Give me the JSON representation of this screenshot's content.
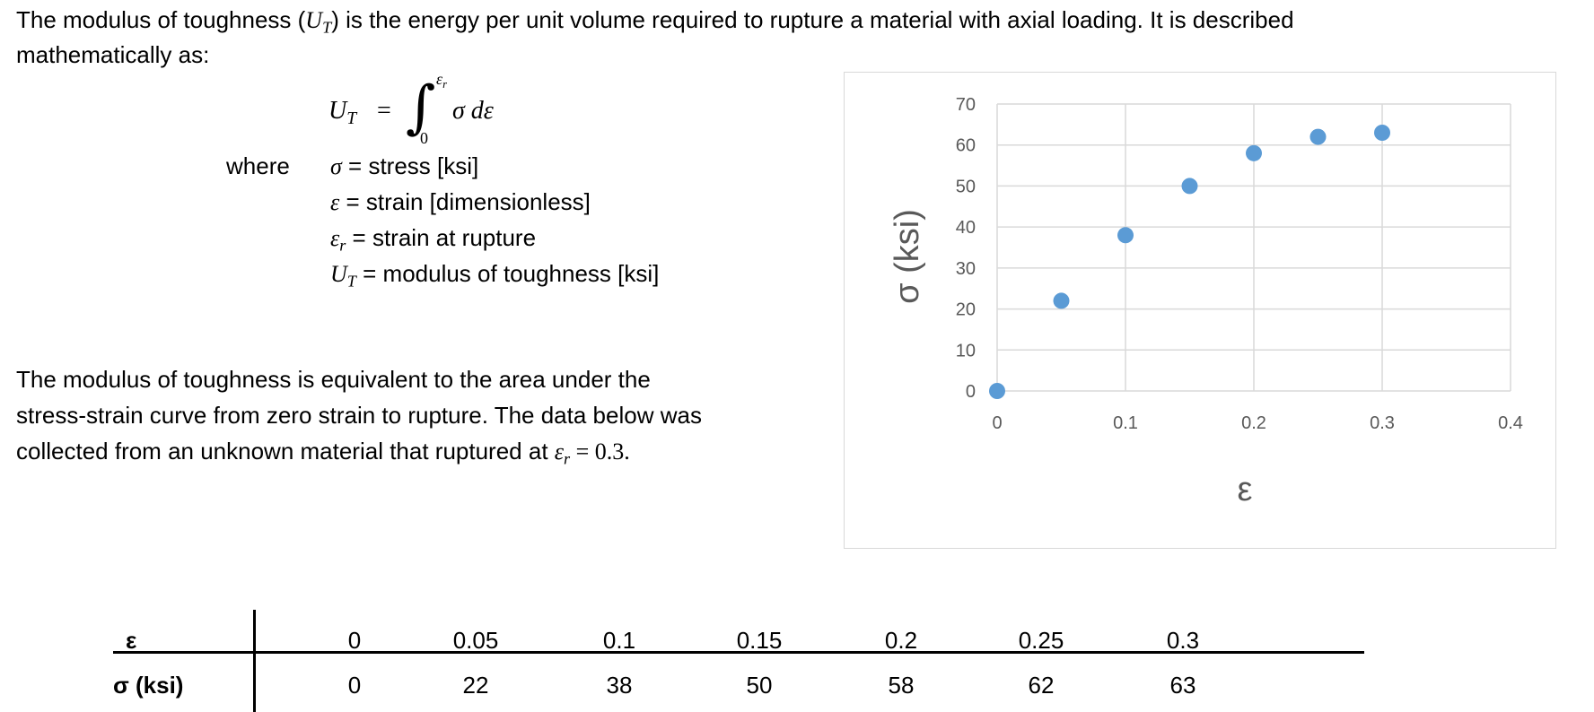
{
  "intro": {
    "before_symbol": "The modulus of toughness (",
    "symbol_base": "U",
    "symbol_sub": "T",
    "after_symbol": ") is the energy per unit volume required to rupture a material with axial loading. It is described",
    "line2": "mathematically as:"
  },
  "formula": {
    "lhs_base": "U",
    "lhs_sub": "T",
    "equals": "=",
    "integral_sign": "∫",
    "upper_limit_base": "ε",
    "upper_limit_sub": "r",
    "lower_limit": "0",
    "integrand": "σ dε"
  },
  "where": {
    "label": "where",
    "items": [
      {
        "sym_base": "σ",
        "sym_sub": "",
        "text": " = stress [ksi]"
      },
      {
        "sym_base": "ε",
        "sym_sub": "",
        "text": " = strain [dimensionless]"
      },
      {
        "sym_base": "ε",
        "sym_sub": "r",
        "text": " = strain at rupture"
      },
      {
        "sym_base": "U",
        "sym_sub": "T",
        "text": " = modulus of toughness [ksi]"
      }
    ]
  },
  "paragraph": {
    "line1": "The modulus of toughness is equivalent to the area under the",
    "line2": "stress-strain curve from zero strain to rupture. The data below was",
    "line3_before": "collected from an unknown material that ruptured at ",
    "line3_sym_base": "ε",
    "line3_sym_sub": "r",
    "line3_after": " = 0.3."
  },
  "chart_data": {
    "type": "scatter",
    "x": [
      0,
      0.05,
      0.1,
      0.15,
      0.2,
      0.25,
      0.3
    ],
    "y": [
      0,
      22,
      38,
      50,
      58,
      62,
      63
    ],
    "xlim": [
      0,
      0.4
    ],
    "ylim": [
      0,
      70
    ],
    "xticks": [
      0,
      0.1,
      0.2,
      0.3,
      0.4
    ],
    "yticks": [
      0,
      10,
      20,
      30,
      40,
      50,
      60,
      70
    ],
    "xlabel": "ε",
    "ylabel": "σ (ksi)",
    "grid": true,
    "marker_color": "#5b9bd5",
    "grid_color": "#d9d9d9",
    "text_color": "#595959"
  },
  "table": {
    "row1_header": "ε",
    "row2_header": "σ (ksi)",
    "strain": [
      "0",
      "0.05",
      "0.1",
      "0.15",
      "0.2",
      "0.25",
      "0.3"
    ],
    "stress": [
      "0",
      "22",
      "38",
      "50",
      "58",
      "62",
      "63"
    ]
  }
}
